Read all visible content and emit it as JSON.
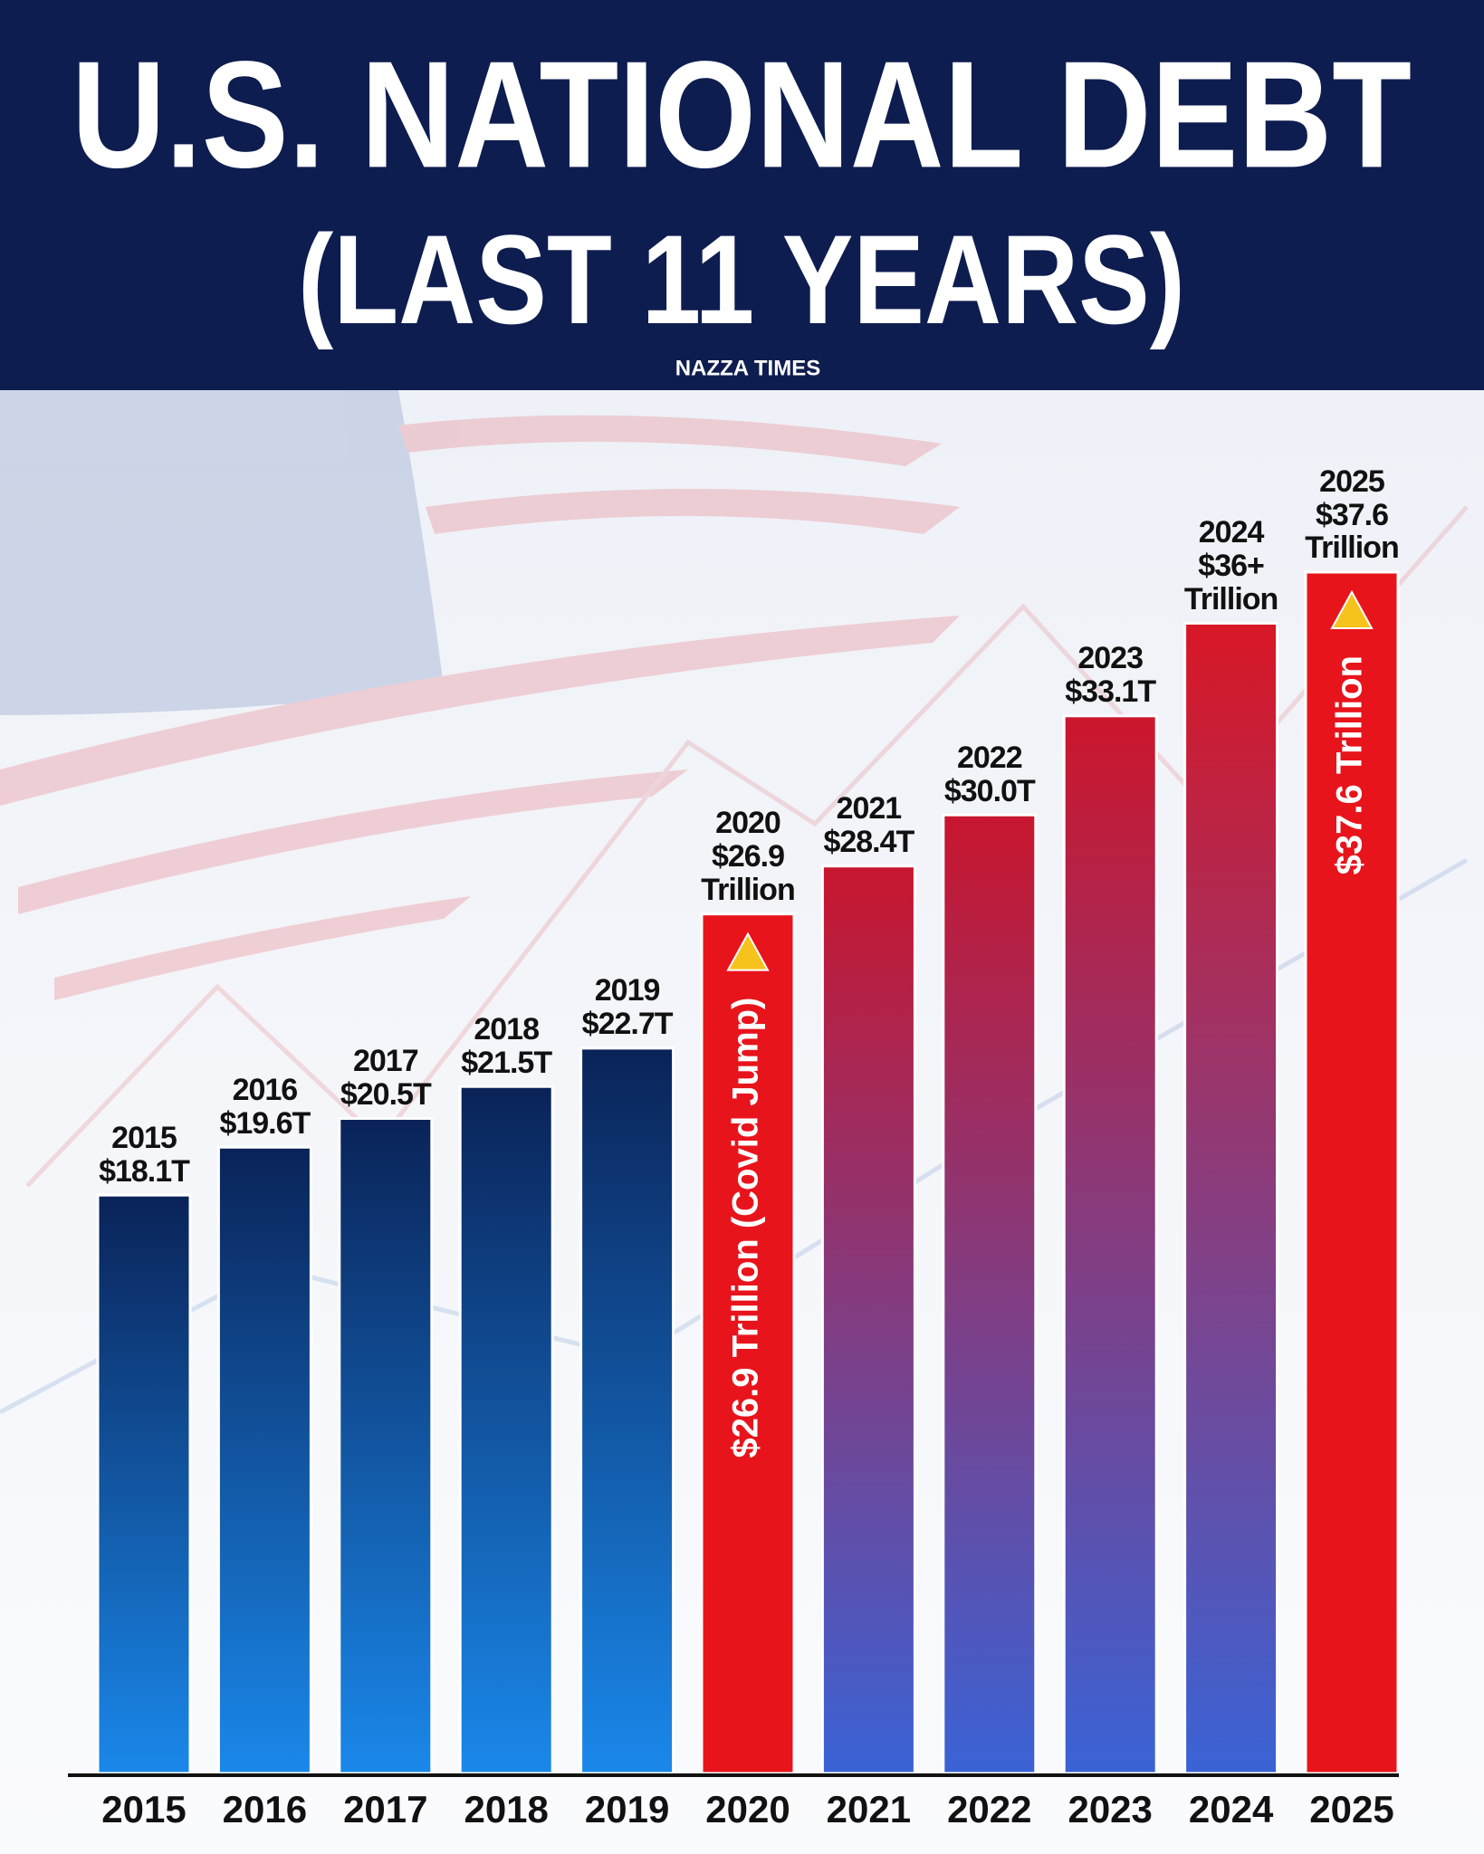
{
  "chart_data": {
    "type": "bar",
    "title": "U.S. NATIONAL DEBT",
    "subtitle": "(LAST 11 YEARS)",
    "source": "NAZZA TIMES",
    "categories": [
      "2015",
      "2016",
      "2017",
      "2018",
      "2019",
      "2020",
      "2021",
      "2022",
      "2023",
      "2024",
      "2025"
    ],
    "values": [
      18.1,
      19.6,
      20.5,
      21.5,
      22.7,
      26.9,
      28.4,
      30.0,
      33.1,
      36,
      37.6
    ],
    "value_labels": [
      "$18.1T",
      "$19.6T",
      "$20.5T",
      "$21.5T",
      "$22.7T",
      "$26.9 Trillion",
      "$28.4T",
      "$30.0T",
      "$33.1T",
      "$36+ Trillion",
      "$37.6 Trillion"
    ],
    "inner_labels": [
      null,
      null,
      null,
      null,
      null,
      "$26.9 Trillion (Covid Jump)",
      null,
      null,
      null,
      null,
      "$37.6 Trillion"
    ],
    "colors": [
      [
        "#0a2358",
        "#1a88ea"
      ],
      [
        "#0a2358",
        "#1a88ea"
      ],
      [
        "#0a2358",
        "#1a88ea"
      ],
      [
        "#0a2358",
        "#1a88ea"
      ],
      [
        "#0a2358",
        "#1a88ea"
      ],
      [
        "#e8141c",
        "#e8141c"
      ],
      [
        "#c8162e",
        "#3a63d6"
      ],
      [
        "#c8162e",
        "#3a63d6"
      ],
      [
        "#cc162c",
        "#3a63d6"
      ],
      [
        "#d81726",
        "#3a63d6"
      ],
      [
        "#e8141c",
        "#e8141c"
      ]
    ]
  }
}
